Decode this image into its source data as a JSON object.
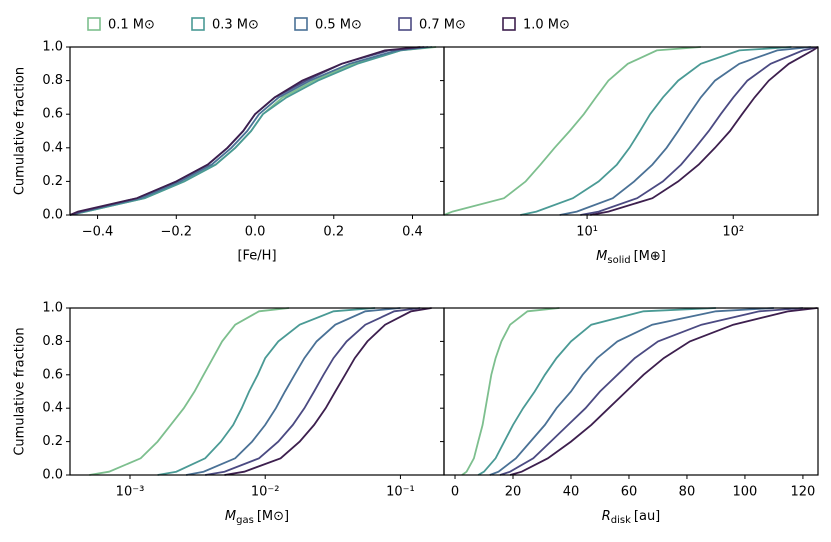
{
  "chart_data": [
    {
      "type": "line",
      "ylabel": "Cumulative fraction",
      "xlabel": "[Fe/H]",
      "xscale": "linear",
      "xlim": [
        -0.47,
        0.48
      ],
      "xticks": [
        {
          "value": -0.4,
          "label": "−0.4"
        },
        {
          "value": -0.2,
          "label": "−0.2"
        },
        {
          "value": 0,
          "label": "0.0"
        },
        {
          "value": 0.2,
          "label": "0.2"
        },
        {
          "value": 0.4,
          "label": "0.4"
        }
      ],
      "ylim": [
        0,
        1
      ],
      "ytick_labels": true,
      "yticks": [
        {
          "value": 0,
          "label": "0.0"
        },
        {
          "value": 0.2,
          "label": "0.2"
        },
        {
          "value": 0.4,
          "label": "0.4"
        },
        {
          "value": 0.6,
          "label": "0.6"
        },
        {
          "value": 0.8,
          "label": "0.8"
        },
        {
          "value": 1,
          "label": "1.0"
        }
      ],
      "series": [
        {
          "name": "0.1 M⊙",
          "color": "#7dbf8e",
          "x": [
            -0.47,
            -0.43,
            -0.28,
            -0.18,
            -0.1,
            -0.05,
            -0.01,
            0.02,
            0.07,
            0.15,
            0.25,
            0.37,
            0.46
          ],
          "values": [
            0,
            0.02,
            0.1,
            0.2,
            0.3,
            0.4,
            0.5,
            0.6,
            0.7,
            0.8,
            0.9,
            0.98,
            1
          ]
        },
        {
          "name": "0.3 M⊙",
          "color": "#4a9a95",
          "x": [
            -0.47,
            -0.43,
            -0.28,
            -0.18,
            -0.1,
            -0.05,
            -0.01,
            0.02,
            0.08,
            0.16,
            0.26,
            0.37,
            0.45
          ],
          "values": [
            0,
            0.02,
            0.1,
            0.2,
            0.3,
            0.4,
            0.5,
            0.6,
            0.7,
            0.8,
            0.9,
            0.98,
            1
          ]
        },
        {
          "name": "0.5 M⊙",
          "color": "#4a7196",
          "x": [
            -0.47,
            -0.44,
            -0.29,
            -0.19,
            -0.11,
            -0.06,
            -0.02,
            0.01,
            0.06,
            0.14,
            0.24,
            0.36,
            0.44
          ],
          "values": [
            0,
            0.02,
            0.1,
            0.2,
            0.3,
            0.4,
            0.5,
            0.6,
            0.7,
            0.8,
            0.9,
            0.98,
            1
          ]
        },
        {
          "name": "0.7 M⊙",
          "color": "#4b4a82",
          "x": [
            -0.47,
            -0.44,
            -0.3,
            -0.2,
            -0.12,
            -0.07,
            -0.03,
            0,
            0.05,
            0.13,
            0.22,
            0.34,
            0.43
          ],
          "values": [
            0,
            0.02,
            0.1,
            0.2,
            0.3,
            0.4,
            0.5,
            0.6,
            0.7,
            0.8,
            0.9,
            0.98,
            1
          ]
        },
        {
          "name": "1.0 M⊙",
          "color": "#3d1f4e",
          "x": [
            -0.47,
            -0.45,
            -0.3,
            -0.2,
            -0.12,
            -0.07,
            -0.03,
            0,
            0.05,
            0.12,
            0.22,
            0.33,
            0.42
          ],
          "values": [
            0,
            0.02,
            0.1,
            0.2,
            0.3,
            0.4,
            0.5,
            0.6,
            0.7,
            0.8,
            0.9,
            0.98,
            1
          ]
        }
      ]
    },
    {
      "type": "line",
      "xlabel": {
        "symbol": "M",
        "sub": "solid",
        "unit": "[M⊕]"
      },
      "xscale": "log",
      "xlim": [
        1.05,
        380
      ],
      "xticks": [
        {
          "value": 10,
          "label": "10¹"
        },
        {
          "value": 100,
          "label": "10²"
        }
      ],
      "ylim": [
        0,
        1
      ],
      "ytick_labels": false,
      "yticks": [
        0,
        0.2,
        0.4,
        0.6,
        0.8,
        1
      ],
      "series": [
        {
          "color": "#7dbf8e",
          "x": [
            1.05,
            1.2,
            2.7,
            3.8,
            4.8,
            6,
            7.6,
            9.5,
            11.5,
            14,
            19,
            30,
            60
          ],
          "values": [
            0,
            0.02,
            0.1,
            0.2,
            0.3,
            0.4,
            0.5,
            0.6,
            0.7,
            0.8,
            0.9,
            0.98,
            1
          ]
        },
        {
          "color": "#4a9a95",
          "x": [
            3.5,
            4.5,
            8,
            12,
            16,
            19.5,
            23,
            27,
            33,
            42,
            60,
            110,
            250
          ],
          "values": [
            0,
            0.02,
            0.1,
            0.2,
            0.3,
            0.4,
            0.5,
            0.6,
            0.7,
            0.8,
            0.9,
            0.98,
            1
          ]
        },
        {
          "color": "#4a7196",
          "x": [
            6.5,
            8.5,
            15,
            21,
            28,
            35,
            42,
            50,
            60,
            75,
            110,
            200,
            340
          ],
          "values": [
            0,
            0.02,
            0.1,
            0.2,
            0.3,
            0.4,
            0.5,
            0.6,
            0.7,
            0.8,
            0.9,
            0.98,
            1
          ]
        },
        {
          "color": "#4b4a82",
          "x": [
            9,
            12,
            22,
            33,
            44,
            55,
            68,
            82,
            100,
            125,
            180,
            300,
            380
          ],
          "values": [
            0,
            0.02,
            0.1,
            0.2,
            0.3,
            0.4,
            0.5,
            0.6,
            0.7,
            0.8,
            0.9,
            0.98,
            1
          ]
        },
        {
          "color": "#3d1f4e",
          "x": [
            10.5,
            14,
            28,
            42,
            58,
            75,
            95,
            115,
            140,
            175,
            240,
            350,
            380
          ],
          "values": [
            0,
            0.02,
            0.1,
            0.2,
            0.3,
            0.4,
            0.5,
            0.6,
            0.7,
            0.8,
            0.9,
            0.98,
            1
          ]
        }
      ]
    },
    {
      "type": "line",
      "ylabel": "Cumulative fraction",
      "xlabel": {
        "symbol": "M",
        "sub": "gas",
        "unit": "[M⊙]"
      },
      "xscale": "log",
      "xlim": [
        0.00036,
        0.21
      ],
      "xticks": [
        {
          "value": 0.001,
          "label": "10⁻³"
        },
        {
          "value": 0.01,
          "label": "10⁻²"
        },
        {
          "value": 0.1,
          "label": "10⁻¹"
        }
      ],
      "ylim": [
        0,
        1
      ],
      "ytick_labels": true,
      "yticks": [
        {
          "value": 0,
          "label": "0.0"
        },
        {
          "value": 0.2,
          "label": "0.2"
        },
        {
          "value": 0.4,
          "label": "0.4"
        },
        {
          "value": 0.6,
          "label": "0.6"
        },
        {
          "value": 0.8,
          "label": "0.8"
        },
        {
          "value": 1,
          "label": "1.0"
        }
      ],
      "series": [
        {
          "color": "#7dbf8e",
          "x": [
            0.0005,
            0.0007,
            0.0012,
            0.0016,
            0.002,
            0.0025,
            0.003,
            0.0035,
            0.0041,
            0.0048,
            0.006,
            0.009,
            0.015
          ],
          "values": [
            0,
            0.02,
            0.1,
            0.2,
            0.3,
            0.4,
            0.5,
            0.6,
            0.7,
            0.8,
            0.9,
            0.98,
            1
          ]
        },
        {
          "color": "#4a9a95",
          "x": [
            0.0016,
            0.0022,
            0.0036,
            0.0047,
            0.0058,
            0.0067,
            0.0076,
            0.0088,
            0.01,
            0.0125,
            0.018,
            0.032,
            0.065
          ],
          "values": [
            0,
            0.02,
            0.1,
            0.2,
            0.3,
            0.4,
            0.5,
            0.6,
            0.7,
            0.8,
            0.9,
            0.98,
            1
          ]
        },
        {
          "color": "#4a7196",
          "x": [
            0.0026,
            0.0035,
            0.006,
            0.008,
            0.01,
            0.012,
            0.014,
            0.0165,
            0.0195,
            0.024,
            0.033,
            0.055,
            0.1
          ],
          "values": [
            0,
            0.02,
            0.1,
            0.2,
            0.3,
            0.4,
            0.5,
            0.6,
            0.7,
            0.8,
            0.9,
            0.98,
            1
          ]
        },
        {
          "color": "#4b4a82",
          "x": [
            0.0036,
            0.005,
            0.009,
            0.0125,
            0.016,
            0.0195,
            0.023,
            0.027,
            0.032,
            0.04,
            0.055,
            0.09,
            0.14
          ],
          "values": [
            0,
            0.02,
            0.1,
            0.2,
            0.3,
            0.4,
            0.5,
            0.6,
            0.7,
            0.8,
            0.9,
            0.98,
            1
          ]
        },
        {
          "color": "#3d1f4e",
          "x": [
            0.005,
            0.007,
            0.013,
            0.018,
            0.023,
            0.028,
            0.033,
            0.039,
            0.046,
            0.057,
            0.077,
            0.12,
            0.17
          ],
          "values": [
            0,
            0.02,
            0.1,
            0.2,
            0.3,
            0.4,
            0.5,
            0.6,
            0.7,
            0.8,
            0.9,
            0.98,
            1
          ]
        }
      ]
    },
    {
      "type": "line",
      "xlabel": {
        "symbol": "R",
        "sub": "disk",
        "unit": "[au]"
      },
      "xscale": "linear",
      "xlim": [
        -3.8,
        125.2
      ],
      "xticks": [
        0,
        20,
        40,
        60,
        80,
        100,
        120
      ],
      "ylim": [
        0,
        1
      ],
      "ytick_labels": false,
      "yticks": [
        0,
        0.2,
        0.4,
        0.6,
        0.8,
        1
      ],
      "series": [
        {
          "color": "#7dbf8e",
          "x": [
            2.4,
            4,
            6.5,
            8,
            9.5,
            10.5,
            11.5,
            12.5,
            14,
            16,
            19,
            25,
            36
          ],
          "values": [
            0,
            0.02,
            0.1,
            0.2,
            0.3,
            0.4,
            0.5,
            0.6,
            0.7,
            0.8,
            0.9,
            0.98,
            1
          ]
        },
        {
          "color": "#4a9a95",
          "x": [
            8,
            10,
            14,
            17,
            20,
            23.5,
            27.5,
            31,
            35,
            40,
            47,
            65,
            90
          ],
          "values": [
            0,
            0.02,
            0.1,
            0.2,
            0.3,
            0.4,
            0.5,
            0.6,
            0.7,
            0.8,
            0.9,
            0.98,
            1
          ]
        },
        {
          "color": "#4a7196",
          "x": [
            12,
            15,
            21,
            26,
            31,
            35,
            40,
            44,
            49,
            56,
            68,
            90,
            110
          ],
          "values": [
            0,
            0.02,
            0.1,
            0.2,
            0.3,
            0.4,
            0.5,
            0.6,
            0.7,
            0.8,
            0.9,
            0.98,
            1
          ]
        },
        {
          "color": "#4b4a82",
          "x": [
            15.5,
            19,
            27,
            33,
            39,
            45,
            50,
            56,
            62,
            70,
            85,
            105,
            120
          ],
          "values": [
            0,
            0.02,
            0.1,
            0.2,
            0.3,
            0.4,
            0.5,
            0.6,
            0.7,
            0.8,
            0.9,
            0.98,
            1
          ]
        },
        {
          "color": "#3d1f4e",
          "x": [
            19,
            23,
            32,
            40,
            47,
            53,
            59,
            65,
            72,
            81,
            96,
            115,
            125
          ],
          "values": [
            0,
            0.02,
            0.1,
            0.2,
            0.3,
            0.4,
            0.5,
            0.6,
            0.7,
            0.8,
            0.9,
            0.98,
            1
          ]
        }
      ]
    }
  ]
}
